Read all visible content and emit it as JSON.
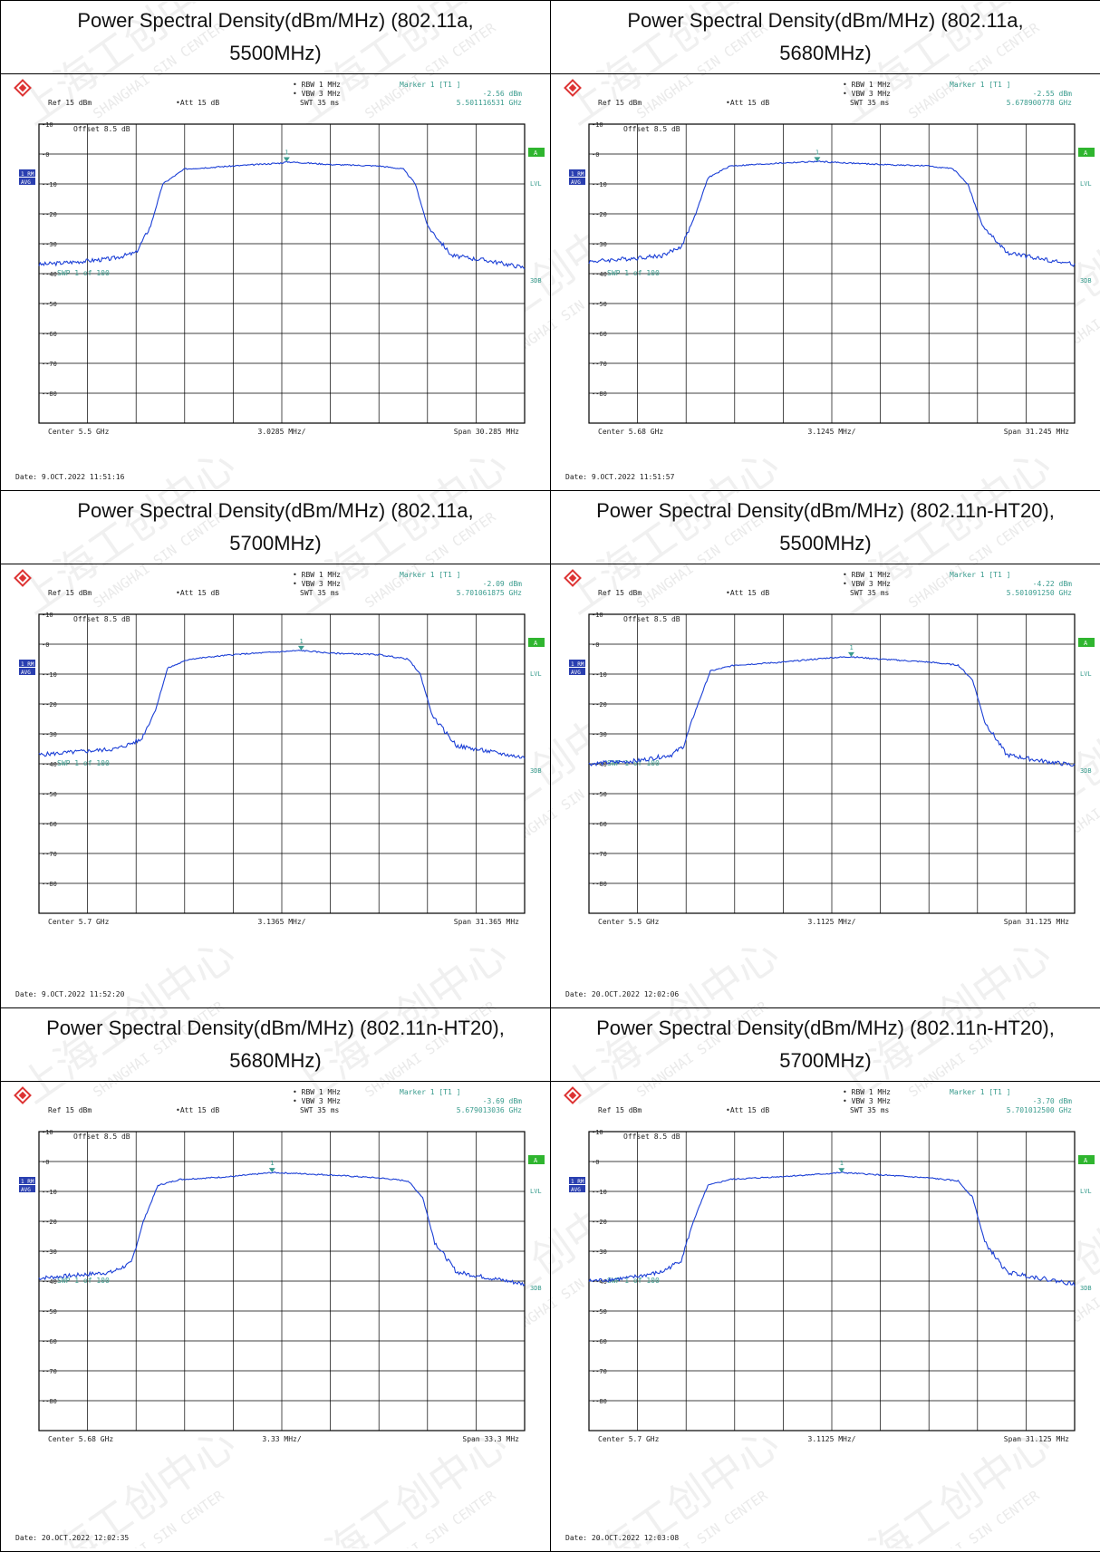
{
  "watermark": "上海工创中心",
  "watermark_en": "SHANGHAI SIN CENTER",
  "chart_data": [
    {
      "type": "line",
      "title": "Power Spectral Density(dBm/MHz) (802.11a, 5500MHz)",
      "ref": "Ref   15 dBm",
      "att": "Att   15 dB",
      "rbw": "RBW  1 MHz",
      "vbw": "VBW  3 MHz",
      "swt": "SWT  35 ms",
      "marker_title": "Marker 1 [T1 ]",
      "marker_level": "-2.56 dBm",
      "marker_freq": "5.501116531 GHz",
      "offset": "Offset   8.5 dB",
      "center": "Center  5.5 GHz",
      "division": "3.0285 MHz/",
      "span": "Span  30.285 MHz",
      "date": "Date:  9.OCT.2022  11:51:16",
      "swp": "SWP    1 of   100",
      "trace_labels": [
        "1 RM",
        "AVG"
      ],
      "side_labels": [
        "A",
        "LVL",
        "3DB"
      ],
      "y_ticks": [
        "10",
        "0",
        "-10",
        "-20",
        "-30",
        "-40",
        "-50",
        "-60",
        "-70",
        "-80"
      ],
      "ylim": [
        -90,
        10
      ],
      "xlim": [
        0,
        10
      ],
      "marker": {
        "x": 5.1,
        "y": -2.56
      },
      "x": [
        0,
        0.8,
        1.5,
        2.0,
        2.3,
        2.55,
        3.0,
        4.0,
        5.0,
        5.1,
        5.5,
        6.0,
        7.0,
        7.5,
        7.75,
        8.0,
        8.5,
        9.2,
        10
      ],
      "y": [
        -37,
        -36,
        -35,
        -33,
        -24,
        -10,
        -5,
        -4,
        -3,
        -2.6,
        -3,
        -3.5,
        -4,
        -5,
        -10,
        -24,
        -34,
        -35.5,
        -38
      ]
    },
    {
      "type": "line",
      "title": "Power Spectral Density(dBm/MHz) (802.11a, 5680MHz)",
      "ref": "Ref   15 dBm",
      "att": "Att   15 dB",
      "rbw": "RBW  1 MHz",
      "vbw": "VBW  3 MHz",
      "swt": "SWT  35 ms",
      "marker_title": "Marker 1 [T1 ]",
      "marker_level": "-2.55 dBm",
      "marker_freq": "5.678900778 GHz",
      "offset": "Offset   8.5 dB",
      "center": "Center  5.68 GHz",
      "division": "3.1245 MHz/",
      "span": "Span  31.245 MHz",
      "date": "Date:  9.OCT.2022  11:51:57",
      "swp": "SWP    1 of   100",
      "trace_labels": [
        "1 RM",
        "AVG"
      ],
      "side_labels": [
        "A",
        "LVL",
        "3DB"
      ],
      "y_ticks": [
        "10",
        "0",
        "-10",
        "-20",
        "-30",
        "-40",
        "-50",
        "-60",
        "-70",
        "-80"
      ],
      "ylim": [
        -90,
        10
      ],
      "xlim": [
        0,
        10
      ],
      "marker": {
        "x": 4.7,
        "y": -2.55
      },
      "x": [
        0,
        0.8,
        1.5,
        1.9,
        2.2,
        2.45,
        2.9,
        4.0,
        4.7,
        5.3,
        6.0,
        7.0,
        7.5,
        7.8,
        8.1,
        8.6,
        9.3,
        10
      ],
      "y": [
        -36,
        -35,
        -34,
        -31,
        -20,
        -8,
        -4,
        -3,
        -2.5,
        -3,
        -3.5,
        -4,
        -5,
        -10,
        -24,
        -33,
        -35,
        -37
      ]
    },
    {
      "type": "line",
      "title": "Power Spectral Density(dBm/MHz) (802.11a, 5700MHz)",
      "ref": "Ref   15 dBm",
      "att": "Att   15 dB",
      "rbw": "RBW  1 MHz",
      "vbw": "VBW  3 MHz",
      "swt": "SWT  35 ms",
      "marker_title": "Marker 1 [T1 ]",
      "marker_level": "-2.09 dBm",
      "marker_freq": "5.701061875 GHz",
      "offset": "Offset   8.5 dB",
      "center": "Center  5.7 GHz",
      "division": "3.1365 MHz/",
      "span": "Span  31.365 MHz",
      "date": "Date:  9.OCT.2022  11:52:20",
      "swp": "SWP    1 of   100",
      "trace_labels": [
        "1 RM",
        "AVG"
      ],
      "side_labels": [
        "A",
        "LVL",
        "3DB"
      ],
      "y_ticks": [
        "10",
        "0",
        "-10",
        "-20",
        "-30",
        "-40",
        "-50",
        "-60",
        "-70",
        "-80"
      ],
      "ylim": [
        -90,
        10
      ],
      "xlim": [
        0,
        10
      ],
      "marker": {
        "x": 5.4,
        "y": -2.09
      },
      "x": [
        0,
        0.8,
        1.6,
        2.1,
        2.4,
        2.65,
        3.1,
        4.0,
        5.0,
        5.4,
        6.0,
        7.0,
        7.6,
        7.85,
        8.1,
        8.6,
        9.3,
        10
      ],
      "y": [
        -37,
        -36,
        -35,
        -32,
        -22,
        -8,
        -5,
        -3.5,
        -2.5,
        -2.1,
        -3,
        -3.5,
        -5,
        -10,
        -24,
        -34,
        -36,
        -38
      ]
    },
    {
      "type": "line",
      "title": "Power Spectral Density(dBm/MHz) (802.11n-HT20), 5500MHz)",
      "ref": "Ref   15 dBm",
      "att": "Att   15 dB",
      "rbw": "RBW  1 MHz",
      "vbw": "VBW  3 MHz",
      "swt": "SWT  35 ms",
      "marker_title": "Marker 1 [T1 ]",
      "marker_level": "-4.22 dBm",
      "marker_freq": "5.501091250 GHz",
      "offset": "Offset   8.5 dB",
      "center": "Center  5.5 GHz",
      "division": "3.1125 MHz/",
      "span": "Span  31.125 MHz",
      "date": "Date:  20.OCT.2022  12:02:06",
      "swp": "SWP    1 of   100",
      "trace_labels": [
        "1 RM",
        "AVG"
      ],
      "side_labels": [
        "A",
        "LVL",
        "3DB"
      ],
      "y_ticks": [
        "10",
        "0",
        "-10",
        "-20",
        "-30",
        "-40",
        "-50",
        "-60",
        "-70",
        "-80"
      ],
      "ylim": [
        -90,
        10
      ],
      "xlim": [
        0,
        10
      ],
      "marker": {
        "x": 5.4,
        "y": -4.22
      },
      "x": [
        0,
        1.0,
        1.7,
        1.95,
        2.2,
        2.5,
        3.0,
        4.0,
        5.0,
        5.4,
        6.0,
        7.0,
        7.6,
        7.9,
        8.15,
        8.6,
        9.3,
        10
      ],
      "y": [
        -40,
        -39,
        -37,
        -34,
        -22,
        -9,
        -7,
        -6,
        -4.5,
        -4.2,
        -5,
        -6,
        -7,
        -12,
        -26,
        -37,
        -39,
        -40.5
      ]
    },
    {
      "type": "line",
      "title": "Power Spectral Density(dBm/MHz) (802.11n-HT20), 5680MHz)",
      "ref": "Ref   15 dBm",
      "att": "Att   15 dB",
      "rbw": "RBW  1 MHz",
      "vbw": "VBW  3 MHz",
      "swt": "SWT  35 ms",
      "marker_title": "Marker 1 [T1 ]",
      "marker_level": "-3.69 dBm",
      "marker_freq": "5.679013036 GHz",
      "offset": "Offset   8.5 dB",
      "center": "Center  5.68 GHz",
      "division": "3.33 MHz/",
      "span": "Span  33.3 MHz",
      "date": "Date:  20.OCT.2022  12:02:35",
      "swp": "SWP    1 of   100",
      "trace_labels": [
        "1 RM",
        "AVG"
      ],
      "side_labels": [
        "A",
        "LVL",
        "3DB"
      ],
      "y_ticks": [
        "10",
        "0",
        "-10",
        "-20",
        "-30",
        "-40",
        "-50",
        "-60",
        "-70",
        "-80"
      ],
      "ylim": [
        -90,
        10
      ],
      "xlim": [
        0,
        10
      ],
      "marker": {
        "x": 4.8,
        "y": -3.69
      },
      "x": [
        0,
        0.8,
        1.5,
        1.9,
        2.15,
        2.45,
        2.9,
        4.0,
        4.8,
        5.3,
        6.0,
        7.0,
        7.6,
        7.9,
        8.15,
        8.6,
        9.3,
        10
      ],
      "y": [
        -39,
        -38,
        -37,
        -34,
        -20,
        -8,
        -6,
        -5,
        -3.7,
        -4,
        -4.5,
        -5.5,
        -6.5,
        -12,
        -27,
        -37,
        -39,
        -41
      ]
    },
    {
      "type": "line",
      "title": "Power Spectral Density(dBm/MHz) (802.11n-HT20), 5700MHz)",
      "ref": "Ref   15 dBm",
      "att": "Att   15 dB",
      "rbw": "RBW  1 MHz",
      "vbw": "VBW  3 MHz",
      "swt": "SWT  35 ms",
      "marker_title": "Marker 1 [T1 ]",
      "marker_level": "-3.70 dBm",
      "marker_freq": "5.701012500 GHz",
      "offset": "Offset   8.5 dB",
      "center": "Center  5.7 GHz",
      "division": "3.1125 MHz/",
      "span": "Span  31.125 MHz",
      "date": "Date:  20.OCT.2022  12:03:08",
      "swp": "SWP    1 of   100",
      "trace_labels": [
        "1 RM",
        "AVG"
      ],
      "side_labels": [
        "A",
        "LVL",
        "3DB"
      ],
      "y_ticks": [
        "10",
        "0",
        "-10",
        "-20",
        "-30",
        "-40",
        "-50",
        "-60",
        "-70",
        "-80"
      ],
      "ylim": [
        -90,
        10
      ],
      "xlim": [
        0,
        10
      ],
      "marker": {
        "x": 5.2,
        "y": -3.7
      },
      "x": [
        0,
        0.8,
        1.5,
        1.9,
        2.15,
        2.45,
        2.9,
        4.0,
        5.0,
        5.2,
        6.0,
        7.0,
        7.6,
        7.9,
        8.15,
        8.6,
        9.3,
        10
      ],
      "y": [
        -40,
        -39,
        -37,
        -33,
        -20,
        -8,
        -6,
        -5,
        -4,
        -3.7,
        -4.5,
        -5.5,
        -6.5,
        -12,
        -27,
        -37,
        -39,
        -41
      ]
    }
  ]
}
